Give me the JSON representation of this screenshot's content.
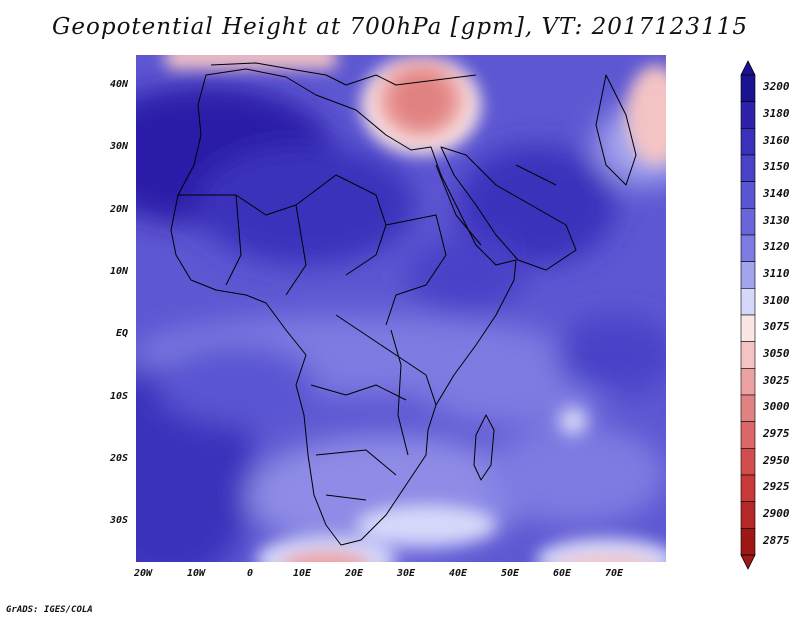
{
  "title": "Geopotential Height at 700hPa [gpm], VT: 2017123115",
  "footer": "GrADS: IGES/COLA",
  "lat_labels": [
    "40N",
    "30N",
    "20N",
    "10N",
    "EQ",
    "10S",
    "20S",
    "30S"
  ],
  "lon_labels": [
    "20W",
    "10W",
    "0",
    "10E",
    "20E",
    "30E",
    "40E",
    "50E",
    "60E",
    "70E"
  ],
  "colorbar": {
    "levels": [
      "3200",
      "3180",
      "3160",
      "3150",
      "3140",
      "3130",
      "3120",
      "3110",
      "3100",
      "3075",
      "3050",
      "3025",
      "3000",
      "2975",
      "2950",
      "2925",
      "2900",
      "2875"
    ],
    "colors": [
      "#1a1290",
      "#2e22a8",
      "#3a30bc",
      "#4a42c8",
      "#5a55d2",
      "#6a66da",
      "#7e7ce2",
      "#a4a4ee",
      "#d6d8fa",
      "#fbe6e6",
      "#f4c4c4",
      "#eda2a2",
      "#e08282",
      "#da6868",
      "#d24e4e",
      "#c83a3a",
      "#b42828",
      "#9e1818"
    ]
  }
}
